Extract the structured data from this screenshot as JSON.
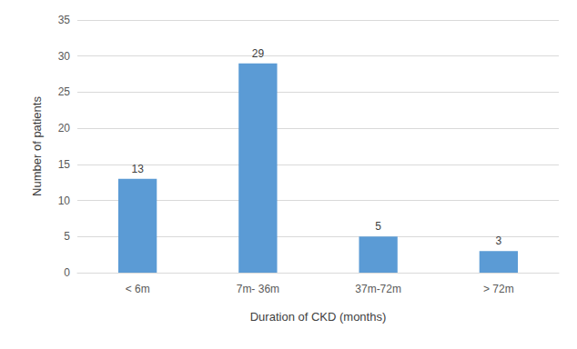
{
  "chart_data": {
    "type": "bar",
    "categories": [
      "< 6m",
      "7m- 36m",
      "37m-72m",
      "> 72m"
    ],
    "values": [
      13,
      29,
      5,
      3
    ],
    "color": "#5b9bd5",
    "x_label": "Duration of CKD (months)",
    "y_label": "Number of patients",
    "ylim": [
      0,
      35
    ],
    "yticks": [
      0,
      5,
      10,
      15,
      20,
      25,
      30,
      35
    ],
    "grid": true,
    "data_labels": true
  }
}
